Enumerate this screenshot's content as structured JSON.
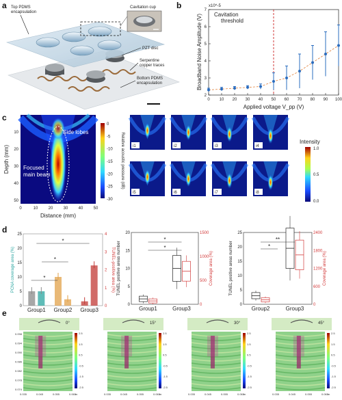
{
  "panel_a": {
    "label": "a",
    "top_pdms": "Top PDMS\nencapsulation",
    "cavitation_cup": "Cavitation cup",
    "pzt_disc": "PZT disc",
    "serpentine": "Serpentine\ncopper traces",
    "bottom_pdms": "Bottom PDMS\nencapsulation"
  },
  "panel_c": {
    "label": "c",
    "ylabel": "Depth (mm)",
    "xlabel": "Distance (mm)",
    "colorbar_label": "Relative acoustic pressure (dB)",
    "cb_ticks": [
      "0",
      "-5",
      "-10",
      "-15",
      "-20",
      "-25",
      "-30"
    ],
    "x_ticks": [
      "0",
      "10",
      "20",
      "30",
      "40",
      "50"
    ],
    "y_ticks": [
      "10",
      "20",
      "30",
      "40",
      "50"
    ],
    "side_lobes": "Side lobes",
    "focused": "Focused\nmain beam",
    "tiles": [
      "i1",
      "i2",
      "i3",
      "i4",
      "i5",
      "i6",
      "i7",
      "i8"
    ],
    "intensity_label": "Intensity",
    "intensity_ticks": [
      "1.0",
      "0.5",
      "0.0"
    ]
  },
  "panel_d": {
    "label": "d",
    "d1": {
      "ylabel_left": "PCNA coverage area (%)",
      "ylabel_right": "TUNEL-positive area (%)",
      "left_ticks": [
        "0",
        "5",
        "10",
        "15",
        "20",
        "25"
      ],
      "right_ticks": [
        "0",
        "1",
        "2",
        "3",
        "4"
      ],
      "groups": [
        "Group1",
        "Group2",
        "Group3"
      ]
    },
    "d2": {
      "ylabel_left": "TUNEL positive areas number",
      "ylabel_right": "Coverage area (%)",
      "left_ticks": [
        "0",
        "5",
        "10",
        "15",
        "20"
      ],
      "right_ticks": [
        "0",
        "500",
        "1000",
        "1500"
      ],
      "groups": [
        "Group1",
        "Group3"
      ]
    },
    "d3": {
      "ylabel_left": "TUNEL positive areas number",
      "ylabel_right": "Coverage area (%)",
      "left_ticks": [
        "0",
        "5",
        "10",
        "15",
        "20",
        "25"
      ],
      "right_ticks": [
        "0",
        "600",
        "1200",
        "1800",
        "2400"
      ],
      "groups": [
        "Group2",
        "Group3"
      ]
    },
    "star": "*",
    "dstar": "**"
  },
  "panel_e": {
    "label": "e",
    "angles": [
      "0°",
      "15°",
      "30°",
      "45°"
    ],
    "y_ticks": [
      "0.098",
      "0.094",
      "0.090",
      "0.086",
      "0.082",
      "0.078",
      "0.074"
    ],
    "x_ticks": [
      "0.035",
      "0.045",
      "0.055",
      "0.065"
    ],
    "cb_ticks": [
      "2.5",
      "1.5",
      "0.5",
      "-0.5",
      "-1.5",
      "-2.5"
    ],
    "unit": "m"
  },
  "colors": {
    "group1": "#8a8a8a",
    "group2": "#e2a24a",
    "group3": "#c23a36",
    "teal": "#2aa5a0",
    "accent_red": "#d23a3a",
    "plot_blue": "#2a6cbf"
  },
  "chart_data": [
    {
      "type": "scatter",
      "panel": "b",
      "label": "b",
      "title": "",
      "xlabel": "Applied voltage V_pp (V)",
      "ylabel": "Broadband Noise Amplitude (V)",
      "y_exponent": "x10^-5",
      "annotation": "Cavitation\nthreshold",
      "threshold_x": 50,
      "xlim": [
        0,
        100
      ],
      "ylim": [
        2,
        7
      ],
      "x_ticks": [
        "0",
        "10",
        "20",
        "30",
        "40",
        "50",
        "60",
        "70",
        "80",
        "90",
        "100"
      ],
      "y_ticks": [
        "2",
        "3",
        "4",
        "5",
        "6",
        "7"
      ],
      "x": [
        0,
        10,
        20,
        30,
        40,
        50,
        60,
        70,
        80,
        90,
        100
      ],
      "y": [
        2.3,
        2.35,
        2.4,
        2.45,
        2.5,
        2.8,
        3.0,
        3.4,
        3.9,
        4.4,
        4.9
      ],
      "err": [
        0.1,
        0.1,
        0.1,
        0.1,
        0.15,
        0.5,
        0.7,
        1.0,
        1.0,
        1.3,
        1.2
      ]
    },
    {
      "type": "bar",
      "panel": "d1",
      "categories": [
        "Group1",
        "Group2",
        "Group3"
      ],
      "series": [
        {
          "values": [
            5,
            10,
            1.5
          ]
        },
        {
          "values": [
            5,
            2.2,
            14
          ]
        }
      ],
      "ylim_left": [
        0,
        25
      ],
      "ylim_right": [
        0,
        4
      ]
    },
    {
      "type": "box",
      "panel": "d2",
      "categories": [
        "Group1",
        "Group3"
      ],
      "left_medians": [
        1.5,
        10
      ],
      "right_medians": [
        70,
        690
      ]
    },
    {
      "type": "box",
      "panel": "d3",
      "categories": [
        "Group2",
        "Group3"
      ],
      "left_medians": [
        3,
        19.5
      ],
      "right_medians": [
        150,
        1650
      ]
    }
  ]
}
